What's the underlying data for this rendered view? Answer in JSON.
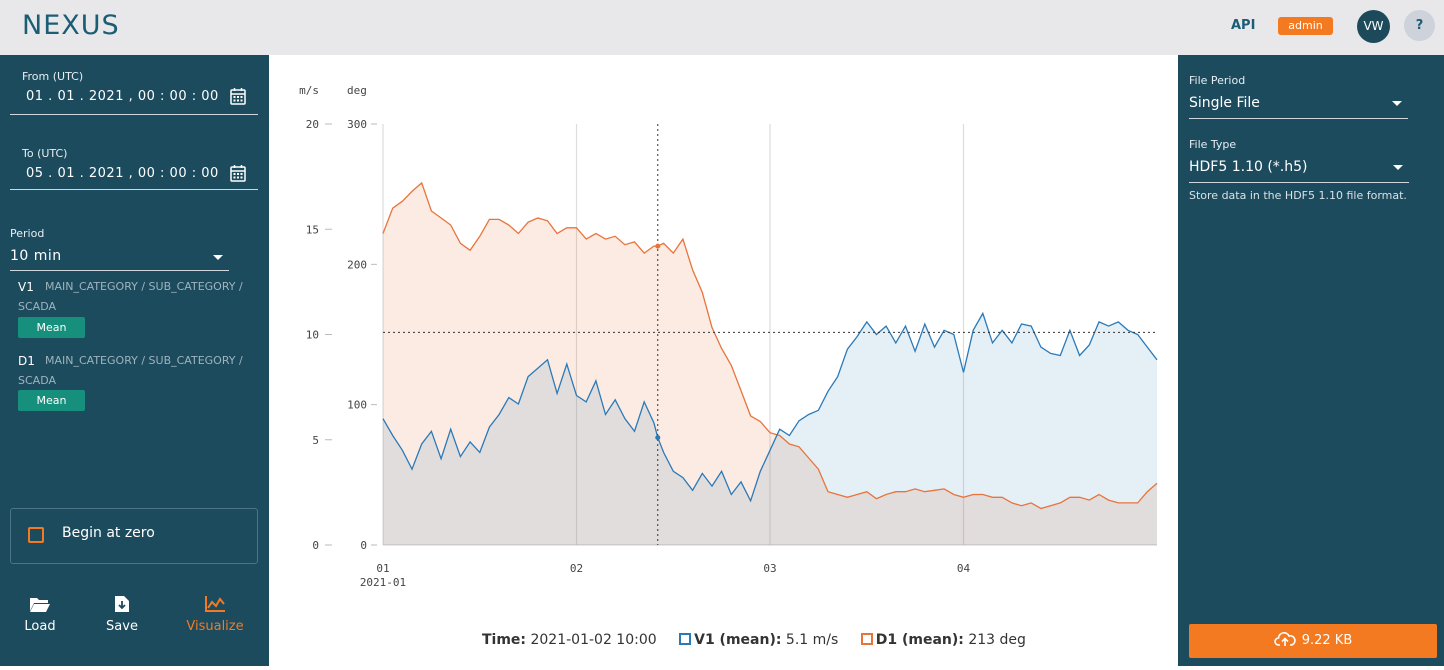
{
  "header": {
    "logo": "NEXUS",
    "api_label": "API",
    "role_badge": "admin",
    "avatar_initials": "VW",
    "help_label": "?"
  },
  "settings": {
    "from_label": "From (UTC)",
    "from_value": "01 . 01 . 2021 ,  00 : 00 : 00",
    "to_label": "To (UTC)",
    "to_value": "05 . 01 . 2021 ,  00 : 00 : 00",
    "period_label": "Period",
    "period_value": "10 min"
  },
  "variables": [
    {
      "name": "V1",
      "path": "MAIN_CATEGORY / SUB_CATEGORY / SCADA",
      "aggregation": "Mean"
    },
    {
      "name": "D1",
      "path": "MAIN_CATEGORY / SUB_CATEGORY / SCADA",
      "aggregation": "Mean"
    }
  ],
  "begin_at_zero": {
    "label": "Begin at zero",
    "checked": false
  },
  "actions": {
    "load": "Load",
    "save": "Save",
    "visualize": "Visualize"
  },
  "legend": {
    "time_label": "Time:",
    "time_value": "2021-01-02 10:00",
    "v1_label": "V1 (mean):",
    "v1_value": "5.1 m/s",
    "d1_label": "D1 (mean):",
    "d1_value": "213 deg"
  },
  "export": {
    "file_period_label": "File Period",
    "file_period_value": "Single File",
    "file_type_label": "File Type",
    "file_type_value": "HDF5 1.10 (*.h5)",
    "file_type_description": "Store data in the HDF5 1.10 file format.",
    "download_label": "9.22 KB"
  },
  "colors": {
    "accent": "#f37a20",
    "panel": "#1c4b5e",
    "v1": "#2a7ab8",
    "d1": "#e8743b"
  },
  "chart_data": {
    "type": "area",
    "y1_unit": "m/s",
    "y2_unit": "deg",
    "y1_ticks": [
      "20",
      "15",
      "10",
      "5",
      "0"
    ],
    "y2_ticks": [
      "300",
      "200",
      "100",
      "0"
    ],
    "y1_range": [
      0,
      20
    ],
    "y2_range": [
      0,
      300
    ],
    "x_ticks": [
      "01",
      "02",
      "03",
      "04"
    ],
    "x_sublabel": "2021-01",
    "x_range_days": [
      1,
      5
    ],
    "grid_vertical": true,
    "series": [
      {
        "name": "V1 (mean)",
        "axis": "left",
        "x": [
          1.0,
          1.05,
          1.1,
          1.15,
          1.2,
          1.25,
          1.3,
          1.35,
          1.4,
          1.45,
          1.5,
          1.55,
          1.6,
          1.65,
          1.7,
          1.75,
          1.8,
          1.85,
          1.9,
          1.95,
          2.0,
          2.05,
          2.1,
          2.15,
          2.2,
          2.25,
          2.3,
          2.35,
          2.4,
          2.42,
          2.45,
          2.5,
          2.55,
          2.6,
          2.65,
          2.7,
          2.75,
          2.8,
          2.85,
          2.9,
          2.95,
          3.0,
          3.05,
          3.1,
          3.15,
          3.2,
          3.25,
          3.3,
          3.35,
          3.4,
          3.45,
          3.5,
          3.55,
          3.6,
          3.65,
          3.7,
          3.75,
          3.8,
          3.85,
          3.9,
          3.95,
          4.0,
          4.05,
          4.1,
          4.15,
          4.2,
          4.25,
          4.3,
          4.35,
          4.4,
          4.45,
          4.5,
          4.55,
          4.6,
          4.65,
          4.7,
          4.75,
          4.8,
          4.85,
          4.9,
          4.95,
          5.0
        ],
        "values": [
          6.0,
          5.2,
          4.5,
          3.6,
          4.8,
          5.4,
          4.1,
          5.5,
          4.2,
          4.9,
          4.4,
          5.6,
          6.2,
          7.0,
          6.7,
          8.0,
          8.4,
          8.8,
          7.2,
          8.6,
          7.1,
          6.8,
          7.8,
          6.2,
          6.9,
          6.0,
          5.4,
          6.8,
          5.8,
          5.1,
          4.4,
          3.5,
          3.2,
          2.6,
          3.4,
          2.8,
          3.5,
          2.4,
          3.0,
          2.1,
          3.5,
          4.5,
          5.5,
          5.2,
          5.9,
          6.2,
          6.4,
          7.3,
          8.0,
          9.3,
          9.9,
          10.6,
          10.0,
          10.4,
          9.6,
          10.4,
          9.2,
          10.5,
          9.4,
          10.2,
          10.0,
          8.2,
          10.2,
          11.0,
          9.6,
          10.2,
          9.6,
          10.5,
          10.4,
          9.4,
          9.1,
          9.0,
          10.2,
          9.0,
          9.5,
          10.6,
          10.4,
          10.6,
          10.2,
          10.0,
          9.4,
          8.8
        ]
      },
      {
        "name": "D1 (mean)",
        "axis": "right",
        "x": [
          1.0,
          1.05,
          1.1,
          1.15,
          1.2,
          1.25,
          1.3,
          1.35,
          1.4,
          1.45,
          1.5,
          1.55,
          1.6,
          1.65,
          1.7,
          1.75,
          1.8,
          1.85,
          1.9,
          1.95,
          2.0,
          2.05,
          2.1,
          2.15,
          2.2,
          2.25,
          2.3,
          2.35,
          2.4,
          2.42,
          2.45,
          2.5,
          2.55,
          2.6,
          2.65,
          2.7,
          2.75,
          2.8,
          2.85,
          2.9,
          2.95,
          3.0,
          3.05,
          3.1,
          3.15,
          3.2,
          3.25,
          3.3,
          3.35,
          3.4,
          3.45,
          3.5,
          3.55,
          3.6,
          3.65,
          3.7,
          3.75,
          3.8,
          3.85,
          3.9,
          3.95,
          4.0,
          4.05,
          4.1,
          4.15,
          4.2,
          4.25,
          4.3,
          4.35,
          4.4,
          4.45,
          4.5,
          4.55,
          4.6,
          4.65,
          4.7,
          4.75,
          4.8,
          4.85,
          4.9,
          4.95,
          5.0
        ],
        "values": [
          222,
          240,
          245,
          252,
          258,
          238,
          233,
          228,
          215,
          210,
          220,
          232,
          232,
          228,
          222,
          230,
          233,
          231,
          222,
          226,
          226,
          218,
          222,
          218,
          220,
          214,
          216,
          208,
          213,
          213,
          215,
          208,
          218,
          196,
          180,
          155,
          140,
          128,
          110,
          92,
          88,
          80,
          78,
          72,
          70,
          62,
          54,
          38,
          36,
          34,
          36,
          38,
          33,
          36,
          38,
          38,
          40,
          38,
          39,
          40,
          36,
          34,
          36,
          36,
          34,
          34,
          30,
          28,
          30,
          26,
          28,
          30,
          34,
          34,
          32,
          36,
          32,
          30,
          30,
          30,
          38,
          44
        ]
      }
    ],
    "crosshair": {
      "x": 2.42,
      "y1": 10.1
    }
  }
}
